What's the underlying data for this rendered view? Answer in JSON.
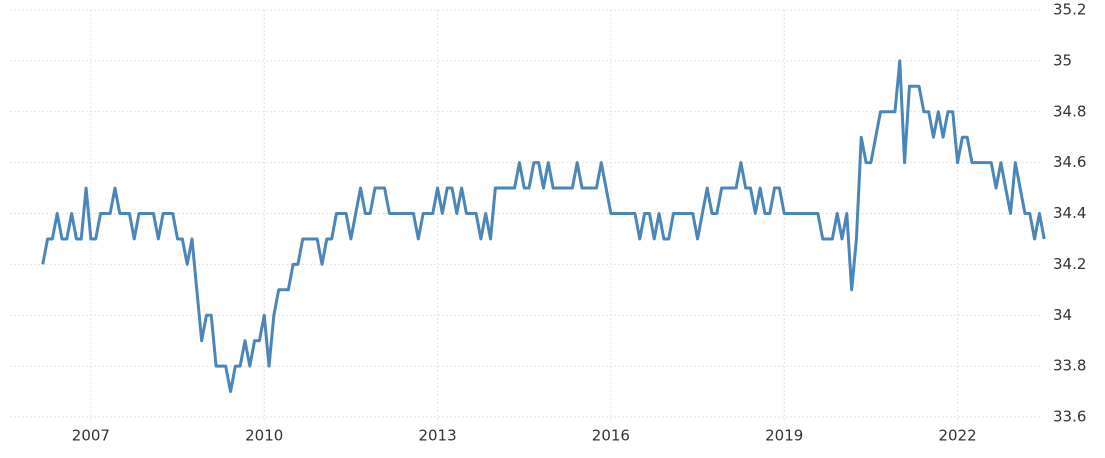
{
  "chart_data": {
    "type": "line",
    "x": [
      2006.167,
      2006.25,
      2006.333,
      2006.417,
      2006.5,
      2006.583,
      2006.667,
      2006.75,
      2006.833,
      2006.917,
      2007,
      2007.083,
      2007.167,
      2007.25,
      2007.333,
      2007.417,
      2007.5,
      2007.583,
      2007.667,
      2007.75,
      2007.833,
      2007.917,
      2008,
      2008.083,
      2008.167,
      2008.25,
      2008.333,
      2008.417,
      2008.5,
      2008.583,
      2008.667,
      2008.75,
      2008.833,
      2008.917,
      2009,
      2009.083,
      2009.167,
      2009.25,
      2009.333,
      2009.417,
      2009.5,
      2009.583,
      2009.667,
      2009.75,
      2009.833,
      2009.917,
      2010,
      2010.083,
      2010.167,
      2010.25,
      2010.333,
      2010.417,
      2010.5,
      2010.583,
      2010.667,
      2010.75,
      2010.833,
      2010.917,
      2011,
      2011.083,
      2011.167,
      2011.25,
      2011.333,
      2011.417,
      2011.5,
      2011.583,
      2011.667,
      2011.75,
      2011.833,
      2011.917,
      2012,
      2012.083,
      2012.167,
      2012.25,
      2012.333,
      2012.417,
      2012.5,
      2012.583,
      2012.667,
      2012.75,
      2012.833,
      2012.917,
      2013,
      2013.083,
      2013.167,
      2013.25,
      2013.333,
      2013.417,
      2013.5,
      2013.583,
      2013.667,
      2013.75,
      2013.833,
      2013.917,
      2014,
      2014.083,
      2014.167,
      2014.25,
      2014.333,
      2014.417,
      2014.5,
      2014.583,
      2014.667,
      2014.75,
      2014.833,
      2014.917,
      2015,
      2015.083,
      2015.167,
      2015.25,
      2015.333,
      2015.417,
      2015.5,
      2015.583,
      2015.667,
      2015.75,
      2015.833,
      2015.917,
      2016,
      2016.083,
      2016.167,
      2016.25,
      2016.333,
      2016.417,
      2016.5,
      2016.583,
      2016.667,
      2016.75,
      2016.833,
      2016.917,
      2017,
      2017.083,
      2017.167,
      2017.25,
      2017.333,
      2017.417,
      2017.5,
      2017.583,
      2017.667,
      2017.75,
      2017.833,
      2017.917,
      2018,
      2018.083,
      2018.167,
      2018.25,
      2018.333,
      2018.417,
      2018.5,
      2018.583,
      2018.667,
      2018.75,
      2018.833,
      2018.917,
      2019,
      2019.083,
      2019.167,
      2019.25,
      2019.333,
      2019.417,
      2019.5,
      2019.583,
      2019.667,
      2019.75,
      2019.833,
      2019.917,
      2020,
      2020.083,
      2020.167,
      2020.25,
      2020.333,
      2020.417,
      2020.5,
      2020.583,
      2020.667,
      2020.75,
      2020.833,
      2020.917,
      2021,
      2021.083,
      2021.167,
      2021.25,
      2021.333,
      2021.417,
      2021.5,
      2021.583,
      2021.667,
      2021.75,
      2021.833,
      2021.917,
      2022,
      2022.083,
      2022.167,
      2022.25,
      2022.333,
      2022.417,
      2022.5,
      2022.583,
      2022.667,
      2022.75,
      2022.833,
      2022.917,
      2023,
      2023.083,
      2023.167,
      2023.25,
      2023.333,
      2023.417,
      2023.5
    ],
    "series": [
      {
        "color": "#4a86b8",
        "values": [
          34.2,
          34.3,
          34.3,
          34.4,
          34.3,
          34.3,
          34.4,
          34.3,
          34.3,
          34.5,
          34.3,
          34.3,
          34.4,
          34.4,
          34.4,
          34.5,
          34.4,
          34.4,
          34.4,
          34.3,
          34.4,
          34.4,
          34.4,
          34.4,
          34.3,
          34.4,
          34.4,
          34.4,
          34.3,
          34.3,
          34.2,
          34.3,
          34.1,
          33.9,
          34.0,
          34.0,
          33.8,
          33.8,
          33.8,
          33.7,
          33.8,
          33.8,
          33.9,
          33.8,
          33.9,
          33.9,
          34.0,
          33.8,
          34.0,
          34.1,
          34.1,
          34.1,
          34.2,
          34.2,
          34.3,
          34.3,
          34.3,
          34.3,
          34.2,
          34.3,
          34.3,
          34.4,
          34.4,
          34.4,
          34.3,
          34.4,
          34.5,
          34.4,
          34.4,
          34.5,
          34.5,
          34.5,
          34.4,
          34.4,
          34.4,
          34.4,
          34.4,
          34.4,
          34.3,
          34.4,
          34.4,
          34.4,
          34.5,
          34.4,
          34.5,
          34.5,
          34.4,
          34.5,
          34.4,
          34.4,
          34.4,
          34.3,
          34.4,
          34.3,
          34.5,
          34.5,
          34.5,
          34.5,
          34.5,
          34.6,
          34.5,
          34.5,
          34.6,
          34.6,
          34.5,
          34.6,
          34.5,
          34.5,
          34.5,
          34.5,
          34.5,
          34.6,
          34.5,
          34.5,
          34.5,
          34.5,
          34.6,
          34.5,
          34.4,
          34.4,
          34.4,
          34.4,
          34.4,
          34.4,
          34.3,
          34.4,
          34.4,
          34.3,
          34.4,
          34.3,
          34.3,
          34.4,
          34.4,
          34.4,
          34.4,
          34.4,
          34.3,
          34.4,
          34.5,
          34.4,
          34.4,
          34.5,
          34.5,
          34.5,
          34.5,
          34.6,
          34.5,
          34.5,
          34.4,
          34.5,
          34.4,
          34.4,
          34.5,
          34.5,
          34.4,
          34.4,
          34.4,
          34.4,
          34.4,
          34.4,
          34.4,
          34.4,
          34.3,
          34.3,
          34.3,
          34.4,
          34.3,
          34.4,
          34.1,
          34.3,
          34.7,
          34.6,
          34.6,
          34.7,
          34.8,
          34.8,
          34.8,
          34.8,
          35.0,
          34.6,
          34.9,
          34.9,
          34.9,
          34.8,
          34.8,
          34.7,
          34.8,
          34.7,
          34.8,
          34.8,
          34.6,
          34.7,
          34.7,
          34.6,
          34.6,
          34.6,
          34.6,
          34.6,
          34.5,
          34.6,
          34.5,
          34.4,
          34.6,
          34.5,
          34.4,
          34.4,
          34.3,
          34.4,
          34.3
        ]
      }
    ],
    "xlim": [
      2005.6,
      2023.6
    ],
    "xticks": [
      2007,
      2010,
      2013,
      2016,
      2019,
      2022
    ],
    "ylim": [
      33.6,
      35.2
    ],
    "yticks": [
      33.6,
      33.8,
      34,
      34.2,
      34.4,
      34.6,
      34.8,
      35,
      35.2
    ],
    "grid": true
  }
}
